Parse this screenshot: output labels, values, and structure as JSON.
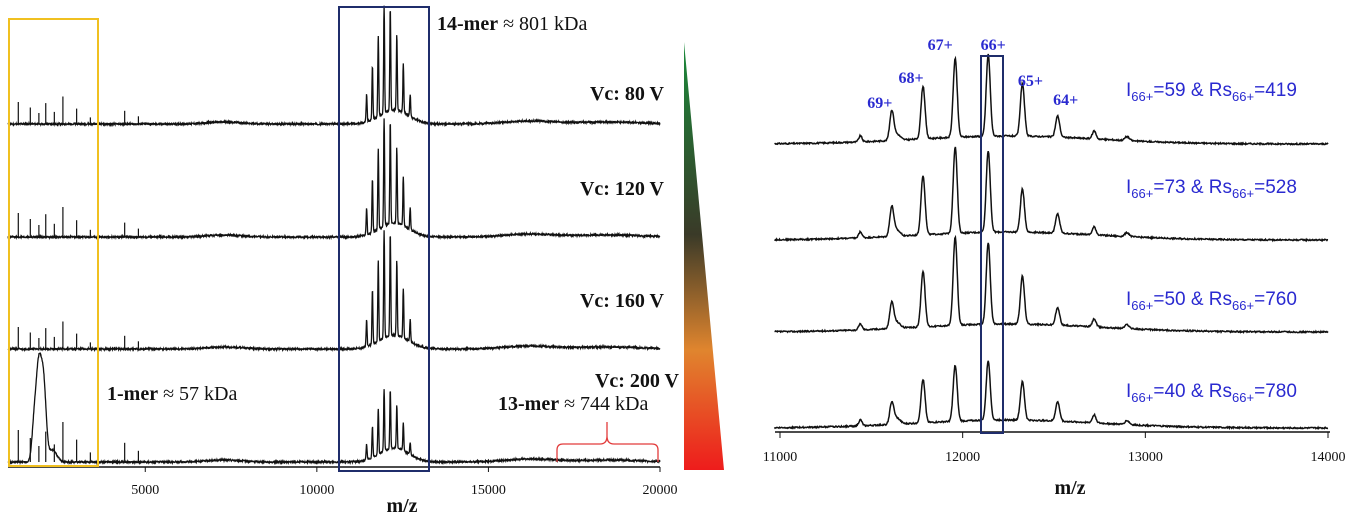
{
  "colors": {
    "trace": "#111111",
    "highlight_low_mass": "#f0c020",
    "highlight_14mer": "#1f2d6b",
    "highlight_66plus": "#1f2d6b",
    "annotation_blue": "#2a2ad0",
    "brace": "#e23b3b",
    "gradient_top": "#1a8a3a",
    "gradient_mid": "#3a3a2a",
    "gradient_low": "#e0852e",
    "gradient_bottom": "#ee1c1c"
  },
  "left_panel": {
    "xlabel": "m/z",
    "annotations": {
      "fourteen_mer_bold": "14-mer",
      "fourteen_mer_rest": " ≈ 801 kDa",
      "one_mer_bold": "1-mer",
      "one_mer_rest": " ≈ 57 kDa",
      "thirteen_mer_bold": "13-mer",
      "thirteen_mer_rest": " ≈ 744 kDa"
    },
    "traces": [
      {
        "label": "Vc: 80 V"
      },
      {
        "label": "Vc: 120 V"
      },
      {
        "label": "Vc: 160 V"
      },
      {
        "label": "Vc: 200 V"
      }
    ]
  },
  "right_panel": {
    "xlabel": "m/z",
    "charge_states": [
      "69+",
      "68+",
      "67+",
      "66+",
      "65+",
      "64+"
    ],
    "traces": [
      {
        "I": "59",
        "Rs": "419"
      },
      {
        "I": "73",
        "Rs": "528"
      },
      {
        "I": "50",
        "Rs": "760"
      },
      {
        "I": "40",
        "Rs": "780"
      }
    ],
    "ann_I": "I",
    "ann_sub": "66+",
    "ann_mid": "=",
    "ann_amp": " & Rs",
    "ann_eq": "="
  },
  "chart_data": [
    {
      "type": "line",
      "title": "",
      "xlabel": "m/z",
      "ylabel": "",
      "xlim": [
        1000,
        20000
      ],
      "xticks": [
        5000,
        10000,
        15000,
        20000
      ],
      "grid": false,
      "series": [
        {
          "name": "Vc: 80 V"
        },
        {
          "name": "Vc: 120 V"
        },
        {
          "name": "Vc: 160 V"
        },
        {
          "name": "Vc: 200 V"
        }
      ],
      "peaks": {
        "1-mer": {
          "mass_kDa": 57,
          "mz_range": [
            1000,
            3500
          ]
        },
        "14-mer": {
          "mass_kDa": 801,
          "mz_range": [
            10800,
            13300
          ]
        },
        "13-mer": {
          "mass_kDa": 744,
          "mz_range": [
            17200,
            20000
          ]
        }
      }
    },
    {
      "type": "line",
      "title": "",
      "xlabel": "m/z",
      "ylabel": "",
      "xlim": [
        11000,
        14000
      ],
      "xticks": [
        11000,
        12000,
        13000,
        14000
      ],
      "grid": false,
      "charge_state_peaks": [
        {
          "z": "69+",
          "mz": 11612
        },
        {
          "z": "68+",
          "mz": 11783
        },
        {
          "z": "67+",
          "mz": 11959
        },
        {
          "z": "66+",
          "mz": 12140
        },
        {
          "z": "65+",
          "mz": 12327
        },
        {
          "z": "64+",
          "mz": 12520
        }
      ],
      "series": [
        {
          "name": "",
          "I_66plus": 59,
          "Rs_66plus": 419
        },
        {
          "name": "",
          "I_66plus": 73,
          "Rs_66plus": 528
        },
        {
          "name": "",
          "I_66plus": 50,
          "Rs_66plus": 760
        },
        {
          "name": "",
          "I_66plus": 40,
          "Rs_66plus": 780
        }
      ]
    }
  ]
}
